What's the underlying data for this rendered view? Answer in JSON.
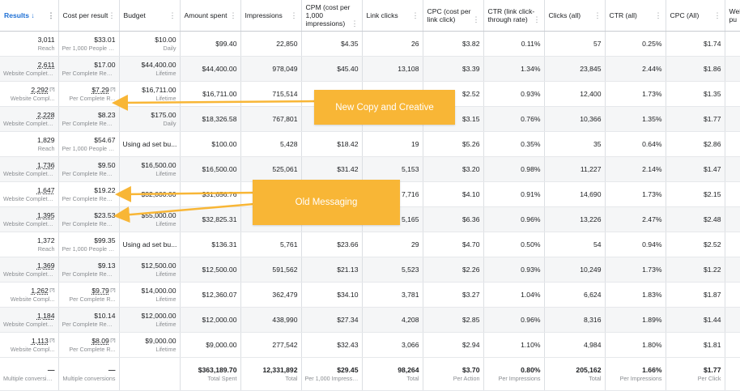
{
  "headers": [
    "Results ↓",
    "Cost per result",
    "Budget",
    "Amount spent",
    "Impressions",
    "CPM (cost per 1,000 impressions)",
    "Link clicks",
    "CPC (cost per link click)",
    "CTR (link click-through rate)",
    "Clicks (all)",
    "CTR (all)",
    "CPC (All)",
    "Web pu"
  ],
  "rows": [
    {
      "results": "3,011",
      "results_sub": "Reach",
      "cpr": "$33.01",
      "cpr_sub": "Per 1,000 People R...",
      "budget": "$10.00",
      "budget_sub": "Daily",
      "spent": "$99.40",
      "impressions": "22,850",
      "cpm": "$4.35",
      "link_clicks": "26",
      "cpc": "$3.82",
      "ctr_link": "0.11%",
      "clicks_all": "57",
      "ctr_all": "0.25%",
      "cpc_all": "$1.74"
    },
    {
      "results": "2,611",
      "results_sub": "Website Complete...",
      "cpr": "$17.00",
      "cpr_sub": "Per Complete Regi...",
      "budget": "$44,400.00",
      "budget_sub": "Lifetime",
      "spent": "$44,400.00",
      "impressions": "978,049",
      "cpm": "$45.40",
      "link_clicks": "13,108",
      "cpc": "$3.39",
      "ctr_link": "1.34%",
      "clicks_all": "23,845",
      "ctr_all": "2.44%",
      "cpc_all": "$1.86"
    },
    {
      "results": "2,292",
      "results_sub": "Website Compl...",
      "cpr": "$7.29",
      "cpr_sub": "Per Complete R...",
      "budget": "$16,711.00",
      "budget_sub": "Lifetime",
      "spent": "$16,711.00",
      "impressions": "715,514",
      "cpm": "$23.36",
      "link_clicks": "6,630",
      "cpc": "$2.52",
      "ctr_link": "0.93%",
      "clicks_all": "12,400",
      "ctr_all": "1.73%",
      "cpc_all": "$1.35"
    },
    {
      "results": "2,228",
      "results_sub": "Website Complete...",
      "cpr": "$8.23",
      "cpr_sub": "Per Complete Regi...",
      "budget": "$175.00",
      "budget_sub": "Daily",
      "spent": "$18,326.58",
      "impressions": "767,801",
      "cpm": "",
      "link_clicks": "",
      "cpc": "$3.15",
      "ctr_link": "0.76%",
      "clicks_all": "10,366",
      "ctr_all": "1.35%",
      "cpc_all": "$1.77"
    },
    {
      "results": "1,829",
      "results_sub": "Reach",
      "cpr": "$54.67",
      "cpr_sub": "Per 1,000 People R...",
      "budget": "Using ad set bu...",
      "budget_sub": "",
      "spent": "$100.00",
      "impressions": "5,428",
      "cpm": "$18.42",
      "link_clicks": "19",
      "cpc": "$5.26",
      "ctr_link": "0.35%",
      "clicks_all": "35",
      "ctr_all": "0.64%",
      "cpc_all": "$2.86"
    },
    {
      "results": "1,736",
      "results_sub": "Website Complete...",
      "cpr": "$9.50",
      "cpr_sub": "Per Complete Regi...",
      "budget": "$16,500.00",
      "budget_sub": "Lifetime",
      "spent": "$16,500.00",
      "impressions": "525,061",
      "cpm": "$31.42",
      "link_clicks": "5,153",
      "cpc": "$3.20",
      "ctr_link": "0.98%",
      "clicks_all": "11,227",
      "ctr_all": "2.14%",
      "cpc_all": "$1.47"
    },
    {
      "results": "1,647",
      "results_sub": "Website Complete...",
      "cpr": "$19.22",
      "cpr_sub": "Per Complete Regi...",
      "budget": "$32,000.00",
      "budget_sub": "",
      "spent": "$31,656.76",
      "impressions": "",
      "cpm": "",
      "link_clicks": "7,716",
      "cpc": "$4.10",
      "ctr_link": "0.91%",
      "clicks_all": "14,690",
      "ctr_all": "1.73%",
      "cpc_all": "$2.15"
    },
    {
      "results": "1,395",
      "results_sub": "Website Complete...",
      "cpr": "$23.53",
      "cpr_sub": "Per Complete Regi...",
      "budget": "$55,000.00",
      "budget_sub": "Lifetime",
      "spent": "$32,825.31",
      "impressions": "",
      "cpm": "",
      "link_clicks": "5,165",
      "cpc": "$6.36",
      "ctr_link": "0.96%",
      "clicks_all": "13,226",
      "ctr_all": "2.47%",
      "cpc_all": "$2.48"
    },
    {
      "results": "1,372",
      "results_sub": "Reach",
      "cpr": "$99.35",
      "cpr_sub": "Per 1,000 People R...",
      "budget": "Using ad set bu...",
      "budget_sub": "",
      "spent": "$136.31",
      "impressions": "5,761",
      "cpm": "$23.66",
      "link_clicks": "29",
      "cpc": "$4.70",
      "ctr_link": "0.50%",
      "clicks_all": "54",
      "ctr_all": "0.94%",
      "cpc_all": "$2.52"
    },
    {
      "results": "1,369",
      "results_sub": "Website Complete...",
      "cpr": "$9.13",
      "cpr_sub": "Per Complete Regi...",
      "budget": "$12,500.00",
      "budget_sub": "Lifetime",
      "spent": "$12,500.00",
      "impressions": "591,562",
      "cpm": "$21.13",
      "link_clicks": "5,523",
      "cpc": "$2.26",
      "ctr_link": "0.93%",
      "clicks_all": "10,249",
      "ctr_all": "1.73%",
      "cpc_all": "$1.22"
    },
    {
      "results": "1,262",
      "results_sub": "Website Compl...",
      "cpr": "$9.79",
      "cpr_sub": "Per Complete R...",
      "budget": "$14,000.00",
      "budget_sub": "Lifetime",
      "spent": "$12,360.07",
      "impressions": "362,479",
      "cpm": "$34.10",
      "link_clicks": "3,781",
      "cpc": "$3.27",
      "ctr_link": "1.04%",
      "clicks_all": "6,624",
      "ctr_all": "1.83%",
      "cpc_all": "$1.87"
    },
    {
      "results": "1,184",
      "results_sub": "Website Complete...",
      "cpr": "$10.14",
      "cpr_sub": "Per Complete Regi...",
      "budget": "$12,000.00",
      "budget_sub": "Lifetime",
      "spent": "$12,000.00",
      "impressions": "438,990",
      "cpm": "$27.34",
      "link_clicks": "4,208",
      "cpc": "$2.85",
      "ctr_link": "0.96%",
      "clicks_all": "8,316",
      "ctr_all": "1.89%",
      "cpc_all": "$1.44"
    },
    {
      "results": "1,113",
      "results_sub": "Website Compl...",
      "cpr": "$8.09",
      "cpr_sub": "Per Complete R...",
      "budget": "$9,000.00",
      "budget_sub": "Lifetime",
      "spent": "$9,000.00",
      "impressions": "277,542",
      "cpm": "$32.43",
      "link_clicks": "3,066",
      "cpc": "$2.94",
      "ctr_link": "1.10%",
      "clicks_all": "4,984",
      "ctr_all": "1.80%",
      "cpc_all": "$1.81"
    }
  ],
  "totals": {
    "results": "—",
    "results_sub": "Multiple conversions",
    "cpr": "—",
    "cpr_sub": "Multiple conversions",
    "budget": "",
    "spent": "$363,189.70",
    "spent_sub": "Total Spent",
    "impressions": "12,331,892",
    "impressions_sub": "Total",
    "cpm": "$29.45",
    "cpm_sub": "Per 1,000 Impressio...",
    "link_clicks": "98,264",
    "link_clicks_sub": "Total",
    "cpc": "$3.70",
    "cpc_sub": "Per Action",
    "ctr_link": "0.80%",
    "ctr_link_sub": "Per Impressions",
    "clicks_all": "205,162",
    "clicks_all_sub": "Total",
    "ctr_all": "1.66%",
    "ctr_all_sub": "Per Impressions",
    "cpc_all": "$1.77",
    "cpc_all_sub": "Per Click"
  },
  "callouts": {
    "new_copy": "New Copy and Creative",
    "old_messaging": "Old Messaging"
  },
  "colors": {
    "callout": "#f8b636",
    "sorted_header": "#1d6fd4"
  }
}
